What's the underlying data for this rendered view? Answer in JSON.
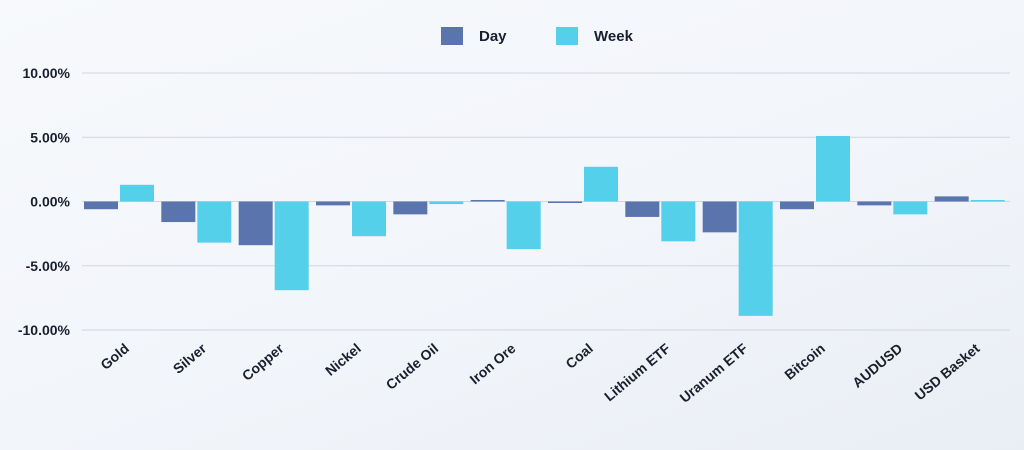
{
  "chart_data": {
    "type": "bar",
    "title": "",
    "xlabel": "",
    "ylabel": "",
    "categories": [
      "Gold",
      "Silver",
      "Copper",
      "Nickel",
      "Crude Oil",
      "Iron Ore",
      "Coal",
      "Lithium ETF",
      "Uranum ETF",
      "Bitcoin",
      "AUDUSD",
      "USD Basket"
    ],
    "series": [
      {
        "name": "Day",
        "color": "#5a74ad",
        "values": [
          -0.6,
          -1.6,
          -3.4,
          -0.3,
          -1.0,
          0.0,
          -0.05,
          -1.2,
          -2.4,
          -0.6,
          -0.3,
          0.4
        ]
      },
      {
        "name": "Week",
        "color": "#55d0eb",
        "values": [
          1.3,
          -3.2,
          -6.9,
          -2.7,
          -0.2,
          -3.7,
          2.7,
          -3.1,
          -8.9,
          5.1,
          -1.0,
          0.05
        ]
      }
    ],
    "ylim": [
      -10,
      10
    ],
    "yticks": [
      10,
      5,
      0,
      -5,
      -10
    ],
    "ytick_labels": [
      "10.00%",
      "5.00%",
      "0.00%",
      "-5.00%",
      "-10.00%"
    ],
    "grid": true,
    "legend_position": "top-center"
  }
}
